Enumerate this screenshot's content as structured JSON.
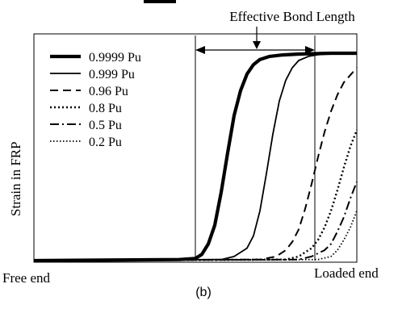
{
  "chart_data": {
    "type": "line",
    "title": "Effective Bond Length",
    "caption": "(b)",
    "xlabel_left": "Free end",
    "xlabel_right": "Loaded end",
    "ylabel": "Strain in FRP",
    "xlim": [
      0,
      1
    ],
    "ylim": [
      0,
      1
    ],
    "grid": false,
    "legend_position": "top-left",
    "effective_bond_length": {
      "start": 0.5,
      "end": 0.87
    },
    "series": [
      {
        "name": "0.9999 Pu",
        "style": "thick-solid",
        "x": [
          0,
          0.45,
          0.5,
          0.52,
          0.54,
          0.56,
          0.58,
          0.6,
          0.62,
          0.64,
          0.66,
          0.68,
          0.7,
          0.73,
          0.77,
          0.82,
          0.87,
          0.92,
          1.0
        ],
        "y": [
          0,
          0.005,
          0.01,
          0.03,
          0.08,
          0.17,
          0.33,
          0.52,
          0.7,
          0.82,
          0.9,
          0.945,
          0.97,
          0.985,
          0.992,
          0.996,
          0.998,
          1.0,
          1.0
        ]
      },
      {
        "name": "0.999 Pu",
        "style": "solid",
        "x": [
          0,
          0.58,
          0.62,
          0.66,
          0.68,
          0.7,
          0.72,
          0.74,
          0.76,
          0.78,
          0.8,
          0.82,
          0.85,
          0.88,
          0.92,
          1.0
        ],
        "y": [
          0,
          0.005,
          0.02,
          0.06,
          0.12,
          0.24,
          0.42,
          0.61,
          0.77,
          0.87,
          0.93,
          0.965,
          0.985,
          0.993,
          0.998,
          1.0
        ]
      },
      {
        "name": "0.96 Pu",
        "style": "dashed",
        "x": [
          0,
          0.7,
          0.75,
          0.78,
          0.8,
          0.82,
          0.84,
          0.86,
          0.88,
          0.9,
          0.92,
          0.94,
          0.96,
          1.0
        ],
        "y": [
          0,
          0.005,
          0.02,
          0.05,
          0.09,
          0.15,
          0.25,
          0.37,
          0.5,
          0.62,
          0.72,
          0.8,
          0.86,
          0.93
        ]
      },
      {
        "name": "0.8 Pu",
        "style": "dotted",
        "x": [
          0,
          0.78,
          0.82,
          0.86,
          0.88,
          0.9,
          0.92,
          0.94,
          0.96,
          0.98,
          1.0
        ],
        "y": [
          0,
          0.005,
          0.02,
          0.06,
          0.1,
          0.16,
          0.24,
          0.34,
          0.45,
          0.55,
          0.63
        ]
      },
      {
        "name": "0.5 Pu",
        "style": "dash-dot",
        "x": [
          0,
          0.82,
          0.86,
          0.9,
          0.92,
          0.94,
          0.96,
          0.98,
          1.0
        ],
        "y": [
          0,
          0.005,
          0.02,
          0.05,
          0.08,
          0.14,
          0.21,
          0.3,
          0.38
        ]
      },
      {
        "name": "0.2 Pu",
        "style": "fine-dotted",
        "x": [
          0,
          0.88,
          0.92,
          0.94,
          0.96,
          0.98,
          1.0
        ],
        "y": [
          0,
          0.005,
          0.02,
          0.05,
          0.1,
          0.16,
          0.24
        ]
      }
    ]
  }
}
